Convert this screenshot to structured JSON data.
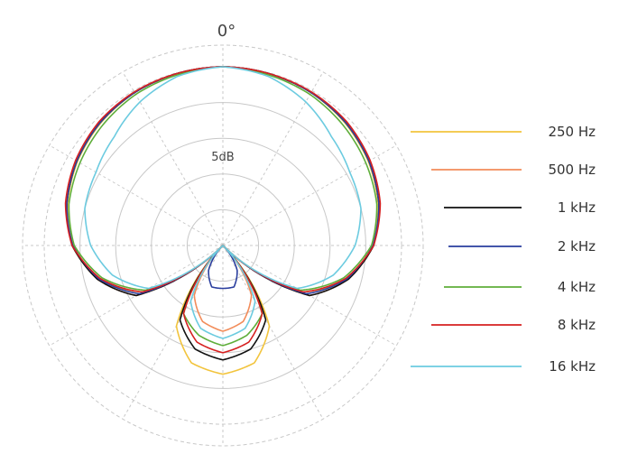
{
  "chart_data": {
    "type": "polar",
    "title": "",
    "angle_label": "0°",
    "ring_label": "5dB",
    "radial_range_db": [
      -25,
      0
    ],
    "ring_step_db": 5,
    "spoke_step_deg": 30,
    "grid": true,
    "legend_position": "right",
    "angles_deg": [
      0,
      15,
      30,
      45,
      60,
      75,
      90,
      105,
      120,
      135,
      150,
      165,
      180
    ],
    "series": [
      {
        "name": "250 Hz",
        "color": "#f2c43d",
        "values_db": [
          0,
          -0.1,
          -0.3,
          -0.8,
          -1.5,
          -2.5,
          -4.0,
          -7.0,
          -12.0,
          -25.0,
          -12.0,
          -8.0,
          -7.0
        ]
      },
      {
        "name": "500 Hz",
        "color": "#f28c5a",
        "values_db": [
          0,
          -0.1,
          -0.3,
          -0.7,
          -1.4,
          -2.4,
          -3.9,
          -6.8,
          -11.0,
          -25.0,
          -17.0,
          -14.0,
          -13.0
        ]
      },
      {
        "name": "1 kHz",
        "color": "#111111",
        "values_db": [
          0,
          -0.1,
          -0.3,
          -0.7,
          -1.4,
          -2.4,
          -3.9,
          -6.8,
          -11.0,
          -25.0,
          -13.0,
          -10.0,
          -9.0
        ]
      },
      {
        "name": "2 kHz",
        "color": "#2a3e9e",
        "values_db": [
          0,
          -0.1,
          -0.3,
          -0.7,
          -1.4,
          -2.4,
          -4.0,
          -7.0,
          -11.5,
          -25.0,
          -21.0,
          -19.0,
          -19.0
        ]
      },
      {
        "name": "4 kHz",
        "color": "#5fae3a",
        "values_db": [
          0,
          -0.3,
          -0.6,
          -1.2,
          -1.9,
          -2.7,
          -4.2,
          -7.5,
          -12.5,
          -25.0,
          -14.0,
          -12.0,
          -11.0
        ]
      },
      {
        "name": "8 kHz",
        "color": "#d62020",
        "values_db": [
          0,
          -0.1,
          -0.2,
          -0.5,
          -1.2,
          -2.2,
          -3.9,
          -7.2,
          -12.0,
          -25.0,
          -14.0,
          -11.0,
          -10.0
        ]
      },
      {
        "name": "16 kHz",
        "color": "#6ccbe0",
        "values_db": [
          0,
          -0.5,
          -1.8,
          -3.5,
          -4.5,
          -5.0,
          -6.5,
          -9.0,
          -13.0,
          -25.0,
          -16.0,
          -13.0,
          -12.0
        ]
      }
    ]
  }
}
